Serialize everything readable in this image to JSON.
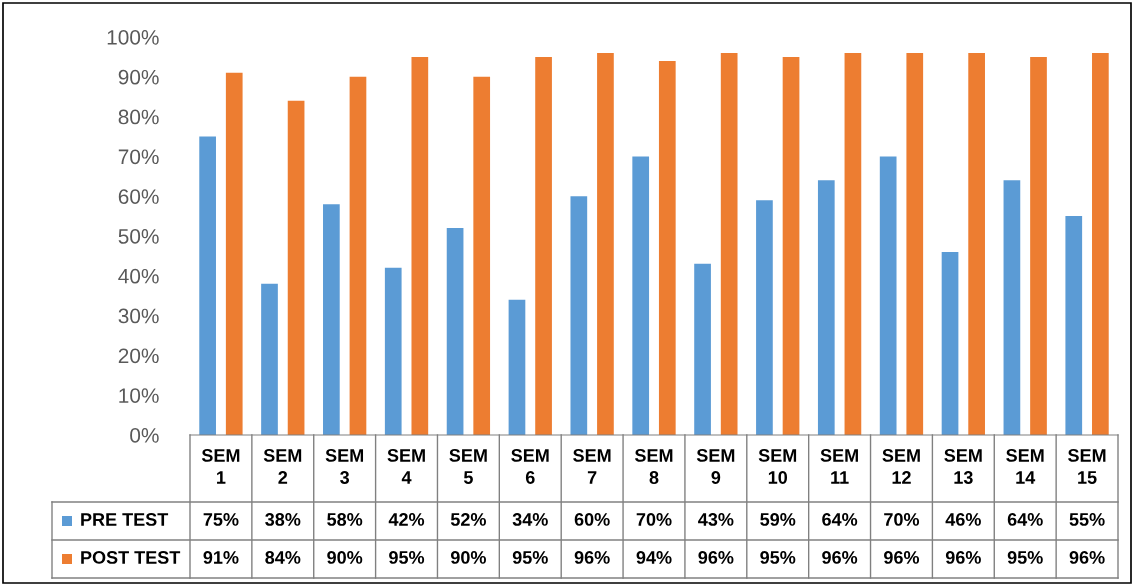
{
  "chart_data": {
    "type": "bar",
    "categories": [
      "SEM 1",
      "SEM 2",
      "SEM 3",
      "SEM 4",
      "SEM 5",
      "SEM 6",
      "SEM 7",
      "SEM 8",
      "SEM 9",
      "SEM 10",
      "SEM 11",
      "SEM 12",
      "SEM 13",
      "SEM 14",
      "SEM 15"
    ],
    "series": [
      {
        "name": "PRE TEST",
        "color": "#5b9bd5",
        "values": [
          75,
          38,
          58,
          42,
          52,
          34,
          60,
          70,
          43,
          59,
          64,
          70,
          46,
          64,
          55
        ],
        "value_labels": [
          "75%",
          "38%",
          "58%",
          "42%",
          "52%",
          "34%",
          "60%",
          "70%",
          "43%",
          "59%",
          "64%",
          "70%",
          "46%",
          "64%",
          "55%"
        ]
      },
      {
        "name": "POST TEST",
        "color": "#ed7d31",
        "values": [
          91,
          84,
          90,
          95,
          90,
          95,
          96,
          94,
          96,
          95,
          96,
          96,
          96,
          95,
          96
        ],
        "value_labels": [
          "91%",
          "84%",
          "90%",
          "95%",
          "90%",
          "95%",
          "96%",
          "94%",
          "96%",
          "95%",
          "96%",
          "96%",
          "96%",
          "95%",
          "96%"
        ]
      }
    ],
    "ylim": [
      0,
      100
    ],
    "yticks": [
      {
        "value": 0,
        "label": "0%"
      },
      {
        "value": 10,
        "label": "10%"
      },
      {
        "value": 20,
        "label": "20%"
      },
      {
        "value": 30,
        "label": "30%"
      },
      {
        "value": 40,
        "label": "40%"
      },
      {
        "value": 50,
        "label": "50%"
      },
      {
        "value": 60,
        "label": "60%"
      },
      {
        "value": 70,
        "label": "70%"
      },
      {
        "value": 80,
        "label": "80%"
      },
      {
        "value": 90,
        "label": "90%"
      },
      {
        "value": 100,
        "label": "100%"
      }
    ],
    "grid": false,
    "legend": "bottom left"
  }
}
